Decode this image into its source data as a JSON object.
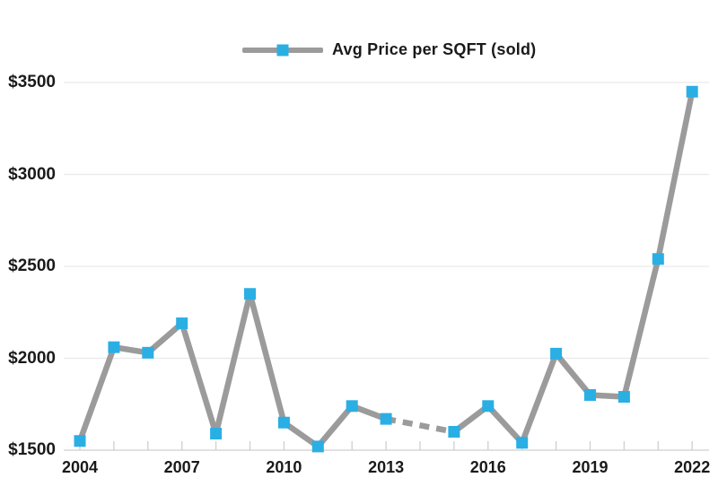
{
  "chart_data": {
    "type": "line",
    "title": "",
    "legend_label": "Avg Price per SQFT (sold)",
    "legend_position": "top-center",
    "x": [
      2004,
      2005,
      2006,
      2007,
      2008,
      2009,
      2010,
      2011,
      2012,
      2013,
      2014,
      2015,
      2016,
      2017,
      2018,
      2019,
      2020,
      2021,
      2022
    ],
    "values": [
      1550,
      2060,
      2030,
      2190,
      1590,
      2350,
      1650,
      1520,
      1740,
      1670,
      null,
      1600,
      1740,
      1540,
      2025,
      1800,
      1790,
      2540,
      3450
    ],
    "missing_years": [
      2014
    ],
    "missing_connector_style": "dashed",
    "xlim": [
      2004,
      2022
    ],
    "ylim": [
      1500,
      3500
    ],
    "y_tick_values": [
      1500,
      2000,
      2500,
      3000,
      3500
    ],
    "y_tick_labels": [
      "$1500",
      "$2000",
      "$2500",
      "$3000",
      "$3500"
    ],
    "x_label_years": [
      2004,
      2007,
      2010,
      2013,
      2016,
      2019,
      2022
    ],
    "x_label_texts": [
      "2004",
      "2007",
      "2010",
      "2013",
      "2016",
      "2019",
      "2022"
    ],
    "grid": "horizontal-only",
    "marker_shape": "square",
    "colors": {
      "line": "#9B9B9B",
      "marker": "#2AAFE4",
      "grid": "#E9E9E9",
      "axis": "#CFCFCF",
      "text": "#1A1A1A"
    }
  }
}
